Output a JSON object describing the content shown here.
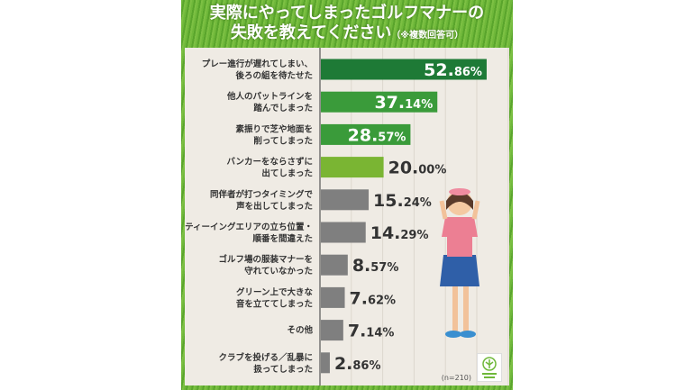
{
  "title_line1": "実際にやってしまったゴルフマナーの",
  "title_line2": "失敗を教えてください",
  "title_note": "（※複数回答可）",
  "sample_note": "(n=210)",
  "colors": {
    "dark_green": "#1e7a36",
    "green": "#3a9b3a",
    "light_green": "#7ab533",
    "gray": "#7f7f7f",
    "panel": "#efebe4",
    "border": "#6fb83a"
  },
  "chart_data": {
    "type": "bar",
    "orientation": "horizontal",
    "title": "実際にやってしまったゴルフマナーの失敗を教えてください（※複数回答可）",
    "unit": "%",
    "xlim": [
      0,
      60
    ],
    "grid": true,
    "categories": [
      [
        "プレー進行が遅れてしまい、",
        "後ろの組を待たせた"
      ],
      [
        "他人のパットラインを",
        "踏んでしまった"
      ],
      [
        "素振りで芝や地面を",
        "削ってしまった"
      ],
      [
        "バンカーをならさずに",
        "出てしまった"
      ],
      [
        "同伴者が打つタイミングで",
        "声を出してしまった"
      ],
      [
        "ティーイングエリアの立ち位置・",
        "順番を間違えた"
      ],
      [
        "ゴルフ場の服装マナーを",
        "守れていなかった"
      ],
      [
        "グリーン上で大きな",
        "音を立ててしまった"
      ],
      [
        "その他"
      ],
      [
        "クラブを投げる／乱暴に",
        "扱ってしまった"
      ]
    ],
    "values": [
      52.86,
      37.14,
      28.57,
      20.0,
      15.24,
      14.29,
      8.57,
      7.62,
      7.14,
      2.86
    ],
    "labels": [
      "52.86%",
      "37.14%",
      "28.57%",
      "20.00%",
      "15.24%",
      "14.29%",
      "8.57%",
      "7.62%",
      "7.14%",
      "2.86%"
    ],
    "bar_colors": [
      "#1e7a36",
      "#3a9b3a",
      "#3a9b3a",
      "#7ab533",
      "#7f7f7f",
      "#7f7f7f",
      "#7f7f7f",
      "#7f7f7f",
      "#7f7f7f",
      "#7f7f7f"
    ]
  }
}
